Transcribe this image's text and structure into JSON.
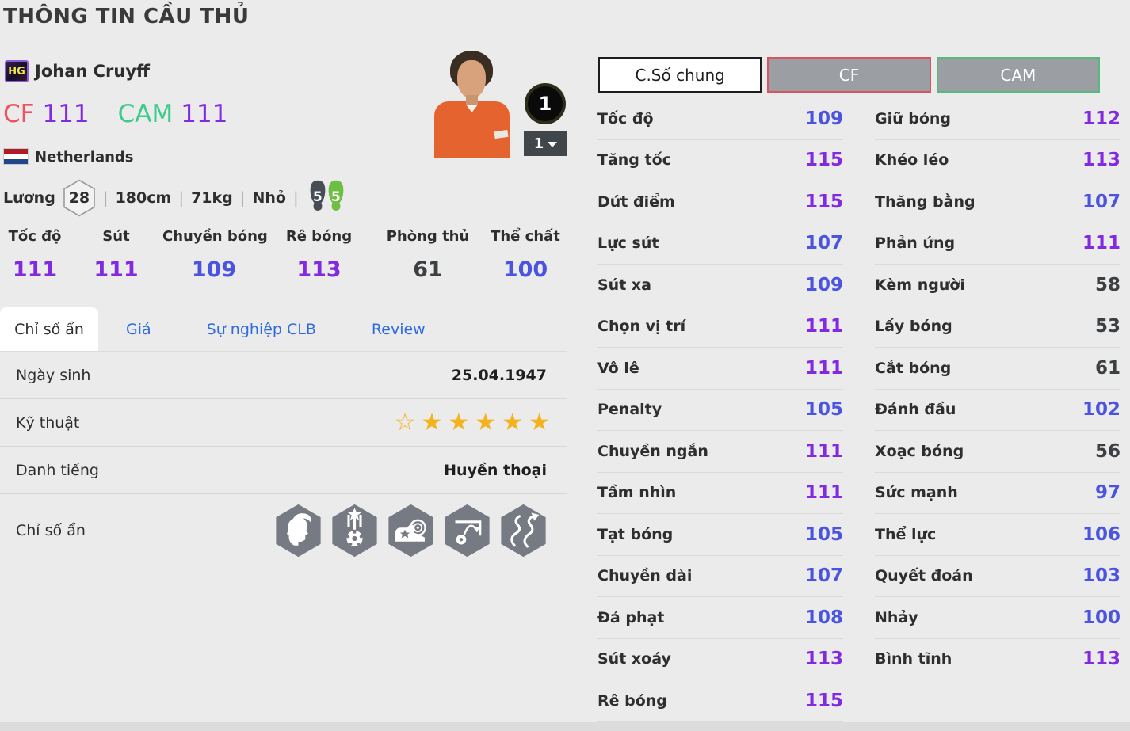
{
  "page": {
    "title": "THÔNG TIN CẦU THỦ"
  },
  "player": {
    "badge": "HG",
    "name": "Johan Cruyff",
    "positions": [
      {
        "label": "CF",
        "value": "111"
      },
      {
        "label": "CAM",
        "value": "111"
      }
    ],
    "nation": "Netherlands",
    "salary_label": "Lương",
    "salary": "28",
    "height": "180cm",
    "weight": "71kg",
    "body_type": "Nhỏ",
    "foot_left": "5",
    "foot_right": "5",
    "level_badge": "1",
    "level_dropdown": "1"
  },
  "summary_stats": [
    {
      "label": "Tốc độ",
      "value": 111
    },
    {
      "label": "Sút",
      "value": 111
    },
    {
      "label": "Chuyền bóng",
      "value": 109
    },
    {
      "label": "Rê bóng",
      "value": 113
    },
    {
      "label": "Phòng thủ",
      "value": 61
    },
    {
      "label": "Thể chất",
      "value": 100
    }
  ],
  "tabs": [
    {
      "label": "Chỉ số ẩn",
      "active": true
    },
    {
      "label": "Giá",
      "active": false
    },
    {
      "label": "Sự nghiệp CLB",
      "active": false
    },
    {
      "label": "Review",
      "active": false
    }
  ],
  "details": {
    "birth_label": "Ngày sinh",
    "birth_value": "25.04.1947",
    "skill_label": "Kỹ thuật",
    "skill_stars_outline": 1,
    "skill_stars_filled": 5,
    "fame_label": "Danh tiếng",
    "fame_value": "Huyền thoại",
    "hidden_label": "Chỉ số ẩn",
    "hidden_icons": [
      "head-flair-icon",
      "medal-ball-icon",
      "boot-target-icon",
      "chip-goal-icon",
      "dribble-paths-icon"
    ]
  },
  "stat_panel": {
    "buttons": [
      {
        "label": "C.Số chung",
        "style": "active"
      },
      {
        "label": "CF",
        "style": "cf"
      },
      {
        "label": "CAM",
        "style": "cam"
      }
    ],
    "columns": [
      [
        {
          "label": "Tốc độ",
          "value": 109
        },
        {
          "label": "Tăng tốc",
          "value": 115
        },
        {
          "label": "Dứt điểm",
          "value": 115
        },
        {
          "label": "Lực sút",
          "value": 107
        },
        {
          "label": "Sút xa",
          "value": 109
        },
        {
          "label": "Chọn vị trí",
          "value": 111
        },
        {
          "label": "Vô lê",
          "value": 111
        },
        {
          "label": "Penalty",
          "value": 105
        },
        {
          "label": "Chuyền ngắn",
          "value": 111
        },
        {
          "label": "Tầm nhìn",
          "value": 111
        },
        {
          "label": "Tạt bóng",
          "value": 105
        },
        {
          "label": "Chuyền dài",
          "value": 107
        },
        {
          "label": "Đá phạt",
          "value": 108
        },
        {
          "label": "Sút xoáy",
          "value": 113
        },
        {
          "label": "Rê bóng",
          "value": 115
        }
      ],
      [
        {
          "label": "Giữ bóng",
          "value": 112
        },
        {
          "label": "Khéo léo",
          "value": 113
        },
        {
          "label": "Thăng bằng",
          "value": 107
        },
        {
          "label": "Phản ứng",
          "value": 111
        },
        {
          "label": "Kèm người",
          "value": 58
        },
        {
          "label": "Lấy bóng",
          "value": 53
        },
        {
          "label": "Cắt bóng",
          "value": 61
        },
        {
          "label": "Đánh đầu",
          "value": 102
        },
        {
          "label": "Xoạc bóng",
          "value": 56
        },
        {
          "label": "Sức mạnh",
          "value": 97
        },
        {
          "label": "Thể lực",
          "value": 106
        },
        {
          "label": "Quyết đoán",
          "value": 103
        },
        {
          "label": "Nhảy",
          "value": 100
        },
        {
          "label": "Bình tĩnh",
          "value": 113
        }
      ]
    ]
  },
  "colors": {
    "stat_purple": "#8229e2",
    "stat_blue": "#4a54e0",
    "stat_dark": "#3c4043",
    "cf_red": "#f0515d",
    "cam_green": "#3ecc8d",
    "cf_border": "#d9545e",
    "cam_border": "#57b97e",
    "tab_link_blue": "#2f6bdf",
    "star_yellow": "#f2b31f",
    "hex_icon_gray": "#767a83",
    "foot_left_dark": "#474d54",
    "foot_right_green": "#6fbe44"
  }
}
